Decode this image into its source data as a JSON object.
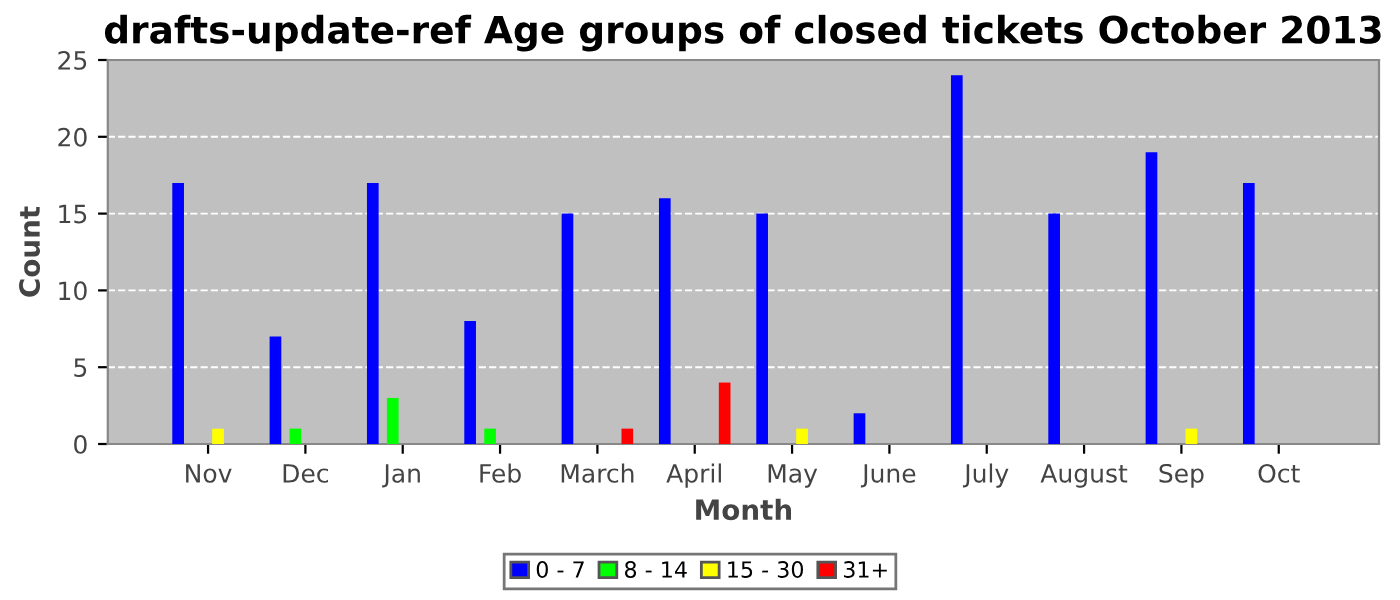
{
  "chart_data": {
    "type": "bar",
    "title": "drafts-update-ref Age groups of closed tickets October 2013",
    "xlabel": "Month",
    "ylabel": "Count",
    "categories": [
      "Nov",
      "Dec",
      "Jan",
      "Feb",
      "March",
      "April",
      "May",
      "June",
      "July",
      "August",
      "Sep",
      "Oct"
    ],
    "series": [
      {
        "name": "0 - 7",
        "color": "#0000ff",
        "values": [
          17,
          7,
          17,
          8,
          15,
          16,
          15,
          2,
          24,
          15,
          19,
          17
        ]
      },
      {
        "name": "8 - 14",
        "color": "#00ff00",
        "values": [
          0,
          1,
          3,
          1,
          0,
          0,
          0,
          0,
          0,
          0,
          0,
          0
        ]
      },
      {
        "name": "15 - 30",
        "color": "#ffff00",
        "values": [
          1,
          0,
          0,
          0,
          0,
          0,
          1,
          0,
          0,
          0,
          1,
          0
        ]
      },
      {
        "name": "31+",
        "color": "#ff0000",
        "values": [
          0,
          0,
          0,
          0,
          1,
          4,
          0,
          0,
          0,
          0,
          0,
          0
        ]
      }
    ],
    "ylim": [
      0,
      25
    ],
    "yticks": [
      0,
      5,
      10,
      15,
      20,
      25
    ],
    "grid": "y",
    "legend": "bottom"
  }
}
